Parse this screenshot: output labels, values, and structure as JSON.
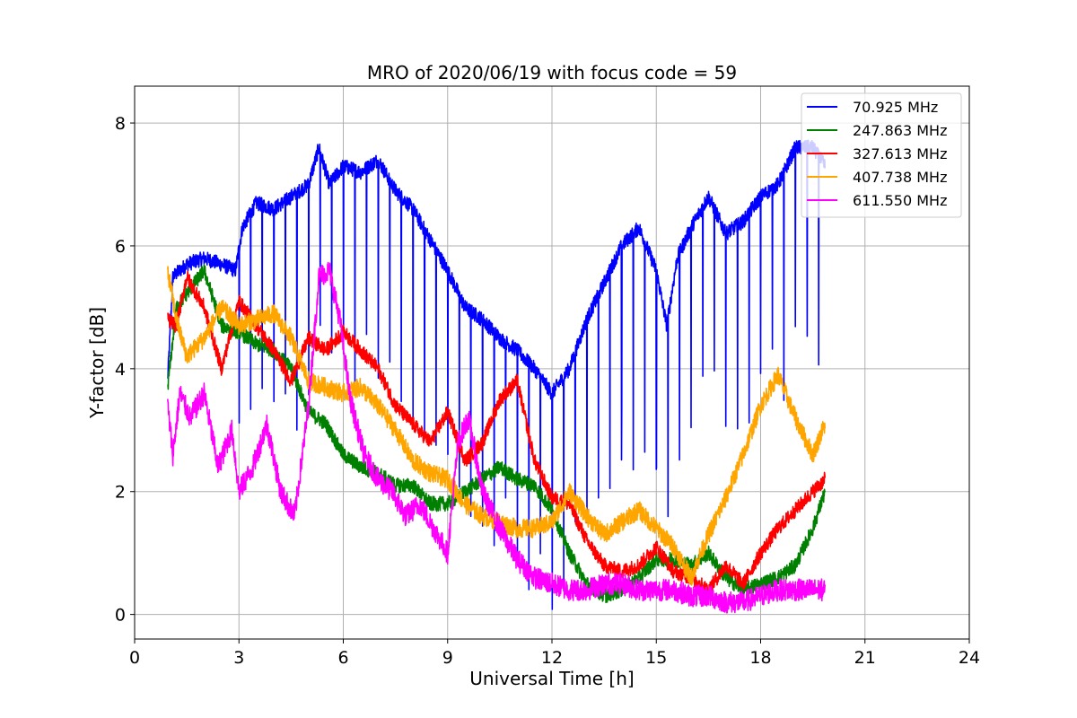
{
  "chart_data": {
    "type": "line",
    "title": "MRO of 2020/06/19 with focus code = 59",
    "xlabel": "Universal Time [h]",
    "ylabel": "Y-factor [dB]",
    "xlim": [
      0,
      24
    ],
    "ylim": [
      -0.4,
      8.6
    ],
    "xticks": [
      0,
      3,
      6,
      9,
      12,
      15,
      18,
      21,
      24
    ],
    "yticks": [
      0,
      2,
      4,
      6,
      8
    ],
    "grid": true,
    "legend_position": "top-right",
    "series": [
      {
        "name": " 70.925 MHz",
        "color": "#0000ff",
        "noise": 0.12,
        "dips": true,
        "x": [
          0.95,
          1.1,
          1.5,
          2.0,
          2.5,
          2.9,
          3.1,
          3.5,
          4.0,
          4.5,
          5.0,
          5.3,
          5.6,
          6.0,
          6.5,
          7.0,
          7.5,
          8.0,
          8.5,
          9.0,
          9.5,
          10.0,
          10.5,
          11.0,
          11.5,
          12.0,
          12.5,
          13.0,
          13.5,
          14.0,
          14.5,
          15.0,
          15.3,
          15.6,
          16.0,
          16.5,
          17.0,
          17.5,
          18.0,
          18.5,
          19.0,
          19.5,
          19.85
        ],
        "y": [
          3.8,
          5.5,
          5.7,
          5.8,
          5.7,
          5.6,
          6.3,
          6.7,
          6.6,
          6.8,
          7.0,
          7.6,
          7.0,
          7.3,
          7.2,
          7.4,
          6.9,
          6.6,
          6.1,
          5.6,
          5.0,
          4.8,
          4.5,
          4.3,
          4.0,
          3.6,
          4.0,
          4.8,
          5.4,
          6.0,
          6.3,
          5.6,
          4.7,
          5.8,
          6.3,
          6.8,
          6.2,
          6.4,
          6.8,
          7.0,
          7.6,
          7.6,
          7.3
        ]
      },
      {
        "name": "247.863 MHz",
        "color": "#008000",
        "noise": 0.12,
        "dips": false,
        "x": [
          0.95,
          1.2,
          1.6,
          2.0,
          2.5,
          3.0,
          3.5,
          4.0,
          4.5,
          5.0,
          5.5,
          6.0,
          6.5,
          7.0,
          7.5,
          8.0,
          8.5,
          9.0,
          9.5,
          10.0,
          10.5,
          11.0,
          11.5,
          12.0,
          12.5,
          13.0,
          13.5,
          14.0,
          14.5,
          15.0,
          15.5,
          16.0,
          16.5,
          17.0,
          17.5,
          18.0,
          18.5,
          19.0,
          19.5,
          19.85
        ],
        "y": [
          3.7,
          5.0,
          5.3,
          5.6,
          4.7,
          4.6,
          4.4,
          4.3,
          4.0,
          3.3,
          3.1,
          2.6,
          2.4,
          2.3,
          2.1,
          2.1,
          1.8,
          1.8,
          2.0,
          2.2,
          2.4,
          2.2,
          2.1,
          1.7,
          1.0,
          0.5,
          0.3,
          0.4,
          0.6,
          0.9,
          0.9,
          0.8,
          1.0,
          0.6,
          0.4,
          0.5,
          0.6,
          0.8,
          1.4,
          2.0
        ]
      },
      {
        "name": "327.613 MHz",
        "color": "#ff0000",
        "noise": 0.12,
        "dips": false,
        "x": [
          0.95,
          1.2,
          1.5,
          2.0,
          2.5,
          3.0,
          3.5,
          4.0,
          4.5,
          5.0,
          5.5,
          6.0,
          6.5,
          7.0,
          7.5,
          8.0,
          8.5,
          9.0,
          9.5,
          10.0,
          10.5,
          11.0,
          11.5,
          12.0,
          12.5,
          13.0,
          13.5,
          14.0,
          14.5,
          15.0,
          15.5,
          16.0,
          16.5,
          17.0,
          17.5,
          18.0,
          18.5,
          19.0,
          19.5,
          19.85
        ],
        "y": [
          4.8,
          4.7,
          5.5,
          5.0,
          4.0,
          5.1,
          4.7,
          4.3,
          3.8,
          4.5,
          4.3,
          4.6,
          4.3,
          4.0,
          3.4,
          3.1,
          2.8,
          3.3,
          2.5,
          2.8,
          3.5,
          3.8,
          2.5,
          1.9,
          1.8,
          1.2,
          0.8,
          0.7,
          0.8,
          1.1,
          0.7,
          0.6,
          0.4,
          0.8,
          0.5,
          1.0,
          1.4,
          1.7,
          2.0,
          2.2
        ]
      },
      {
        "name": "407.738 MHz",
        "color": "#ffa500",
        "noise": 0.15,
        "dips": false,
        "x": [
          0.95,
          1.2,
          1.5,
          2.0,
          2.5,
          3.0,
          3.5,
          4.0,
          4.5,
          5.0,
          5.5,
          6.0,
          6.5,
          7.0,
          7.5,
          8.0,
          8.5,
          9.0,
          9.5,
          10.0,
          10.5,
          11.0,
          11.5,
          12.0,
          12.5,
          13.0,
          13.5,
          14.0,
          14.5,
          15.0,
          15.5,
          16.0,
          16.5,
          17.0,
          17.5,
          18.0,
          18.5,
          19.0,
          19.5,
          19.85
        ],
        "y": [
          5.6,
          4.8,
          4.2,
          4.5,
          5.0,
          4.7,
          4.8,
          4.9,
          4.5,
          3.8,
          3.7,
          3.6,
          3.7,
          3.4,
          3.0,
          2.5,
          2.3,
          2.2,
          1.8,
          1.6,
          1.5,
          1.4,
          1.4,
          1.5,
          2.0,
          1.6,
          1.3,
          1.5,
          1.7,
          1.4,
          1.1,
          0.6,
          1.3,
          1.9,
          2.6,
          3.4,
          3.9,
          3.2,
          2.6,
          3.1
        ]
      },
      {
        "name": "611.550 MHz",
        "color": "#ff00ff",
        "noise": 0.18,
        "dips": false,
        "x": [
          0.95,
          1.1,
          1.3,
          1.6,
          2.0,
          2.4,
          2.8,
          3.0,
          3.4,
          3.8,
          4.2,
          4.6,
          5.0,
          5.3,
          5.6,
          5.9,
          6.2,
          6.6,
          7.0,
          7.4,
          7.8,
          8.2,
          8.6,
          9.0,
          9.3,
          9.6,
          10.0,
          10.5,
          11.0,
          11.5,
          12.0,
          12.5,
          13.0,
          13.5,
          14.0,
          14.5,
          15.0,
          15.5,
          16.0,
          16.5,
          17.0,
          17.5,
          18.0,
          18.5,
          19.0,
          19.5,
          19.85
        ],
        "y": [
          3.4,
          2.6,
          3.6,
          3.2,
          3.6,
          2.4,
          3.0,
          2.0,
          2.4,
          3.1,
          2.0,
          1.6,
          3.4,
          5.5,
          5.6,
          4.8,
          3.5,
          2.6,
          2.2,
          2.0,
          1.6,
          1.8,
          1.4,
          1.0,
          2.8,
          3.2,
          2.0,
          1.4,
          0.9,
          0.6,
          0.5,
          0.4,
          0.4,
          0.5,
          0.5,
          0.4,
          0.4,
          0.4,
          0.3,
          0.3,
          0.2,
          0.2,
          0.3,
          0.4,
          0.4,
          0.4,
          0.4
        ]
      }
    ]
  }
}
